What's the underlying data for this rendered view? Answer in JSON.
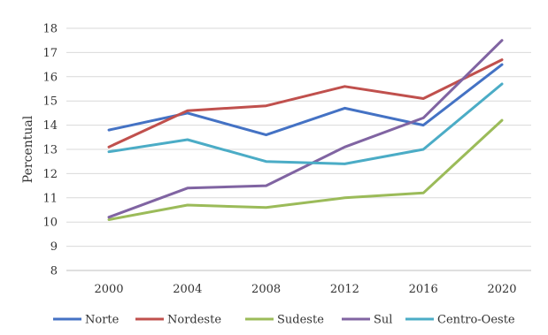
{
  "chart_data": {
    "type": "line",
    "title": "",
    "xlabel": "",
    "ylabel": "Percentual",
    "categories": [
      "2000",
      "2004",
      "2008",
      "2012",
      "2016",
      "2020"
    ],
    "ylim": [
      8,
      18
    ],
    "yticks": [
      8,
      9,
      10,
      11,
      12,
      13,
      14,
      15,
      16,
      17,
      18
    ],
    "grid": "horizontal",
    "legend": "bottom",
    "series": [
      {
        "name": "Norte",
        "color": "#4472c4",
        "values": [
          13.8,
          14.5,
          13.6,
          14.7,
          14.0,
          16.5
        ]
      },
      {
        "name": "Nordeste",
        "color": "#c0504d",
        "values": [
          13.1,
          14.6,
          14.8,
          15.6,
          15.1,
          16.7
        ]
      },
      {
        "name": "Sudeste",
        "color": "#9bbb59",
        "values": [
          10.1,
          10.7,
          10.6,
          11.0,
          11.2,
          14.2
        ]
      },
      {
        "name": "Sul",
        "color": "#8064a2",
        "values": [
          10.2,
          11.4,
          11.5,
          13.1,
          14.3,
          17.5
        ]
      },
      {
        "name": "Centro-Oeste",
        "color": "#4bacc6",
        "values": [
          12.9,
          13.4,
          12.5,
          12.4,
          13.0,
          15.7
        ]
      }
    ]
  }
}
